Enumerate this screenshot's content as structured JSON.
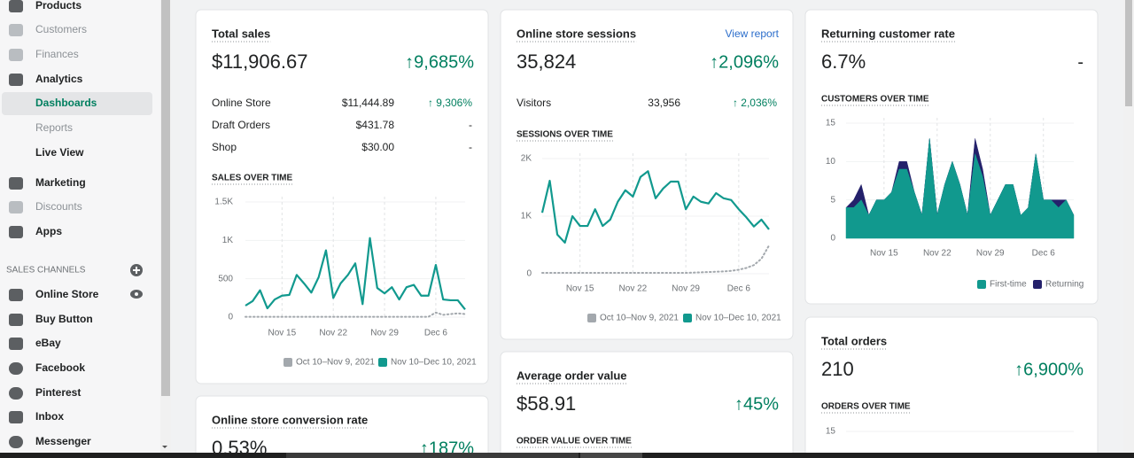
{
  "sidebar": {
    "items": [
      {
        "label": "Products"
      },
      {
        "label": "Customers",
        "disabled": true
      },
      {
        "label": "Finances",
        "disabled": true
      },
      {
        "label": "Analytics"
      },
      {
        "label": "Dashboards",
        "selected": true
      },
      {
        "label": "Reports",
        "disabled": true
      },
      {
        "label": "Live View"
      },
      {
        "label": "Marketing"
      },
      {
        "label": "Discounts",
        "disabled": true
      },
      {
        "label": "Apps"
      }
    ],
    "section": "SALES CHANNELS",
    "channels": [
      "Online Store",
      "Buy Button",
      "eBay",
      "Facebook",
      "Pinterest",
      "Inbox",
      "Messenger"
    ]
  },
  "cards": [
    {
      "title": "Total sales",
      "value": "$11,906.67",
      "change": "↑9,685%",
      "rows": [
        [
          "Online Store",
          "$11,444.89",
          "↑ 9,306%"
        ],
        [
          "Draft Orders",
          "$431.78",
          "-"
        ],
        [
          "Shop",
          "$30.00",
          "-"
        ]
      ],
      "chart": {
        "type": "line",
        "title": "SALES OVER TIME",
        "grid": true,
        "categories": [
          null,
          null,
          null,
          null,
          null,
          "Nov 15",
          null,
          null,
          null,
          null,
          null,
          null,
          "Nov 22",
          null,
          null,
          null,
          null,
          null,
          null,
          "Nov 29",
          null,
          null,
          null,
          null,
          null,
          null,
          "Dec 6",
          null,
          null,
          null,
          null
        ],
        "ylim": [
          0,
          1500
        ],
        "yticks": [
          {
            "value": 1500,
            "label": "1.5K"
          },
          {
            "value": 1000,
            "label": "1K"
          },
          500,
          0
        ],
        "series": [
          {
            "name": "Oct 10–Nov 9, 2021",
            "color": "#a3a8ad",
            "style": "dotted",
            "values": [
              5,
              5,
              5,
              5,
              5,
              5,
              5,
              5,
              5,
              5,
              5,
              5,
              5,
              5,
              5,
              5,
              5,
              5,
              5,
              5,
              5,
              5,
              5,
              5,
              5,
              5,
              60,
              30,
              40,
              50,
              40
            ]
          },
          {
            "name": "Nov 10–Dec 10, 2021",
            "color": "#11998e",
            "values": [
              150,
              210,
              350,
              115,
              230,
              280,
              290,
              550,
              440,
              320,
              520,
              870,
              250,
              440,
              550,
              700,
              170,
              1030,
              380,
              310,
              390,
              230,
              390,
              420,
              280,
              280,
              680,
              230,
              220,
              220,
              100
            ]
          }
        ]
      }
    },
    {
      "title": "Online store sessions",
      "link": "View report",
      "value": "35,824",
      "change": "↑2,096%",
      "rows": [
        [
          "Visitors",
          "33,956",
          "↑ 2,036%"
        ]
      ],
      "chart": {
        "type": "line",
        "title": "SESSIONS OVER TIME",
        "grid": true,
        "categories": [
          null,
          null,
          null,
          null,
          null,
          "Nov 15",
          null,
          null,
          null,
          null,
          null,
          null,
          "Nov 22",
          null,
          null,
          null,
          null,
          null,
          null,
          "Nov 29",
          null,
          null,
          null,
          null,
          null,
          null,
          "Dec 6",
          null,
          null,
          null,
          null
        ],
        "ylim": [
          0,
          2000
        ],
        "yticks": [
          {
            "value": 2000,
            "label": "2K"
          },
          {
            "value": 1000,
            "label": "1K"
          },
          0
        ],
        "series": [
          {
            "name": "Oct 10–Nov 9, 2021",
            "color": "#a3a8ad",
            "style": "dotted",
            "values": [
              15,
              15,
              15,
              15,
              15,
              15,
              15,
              15,
              15,
              15,
              15,
              15,
              15,
              15,
              15,
              15,
              15,
              15,
              15,
              15,
              20,
              25,
              30,
              35,
              40,
              50,
              70,
              100,
              150,
              260,
              490
            ]
          },
          {
            "name": "Nov 10–Dec 10, 2021",
            "color": "#11998e",
            "values": [
              1060,
              1615,
              680,
              540,
              1000,
              830,
              830,
              1120,
              830,
              940,
              1250,
              1450,
              1340,
              1680,
              1780,
              1310,
              1480,
              1600,
              1600,
              1120,
              1340,
              1250,
              1220,
              1400,
              1310,
              1280,
              1120,
              980,
              820,
              940,
              770
            ]
          }
        ]
      }
    },
    {
      "title": "Returning customer rate",
      "value": "6.7%",
      "change": "-",
      "chart": {
        "type": "area",
        "stacked": true,
        "title": "CUSTOMERS OVER TIME",
        "grid": true,
        "categories": [
          null,
          null,
          null,
          null,
          null,
          "Nov 15",
          null,
          null,
          null,
          null,
          null,
          null,
          "Nov 22",
          null,
          null,
          null,
          null,
          null,
          null,
          "Nov 29",
          null,
          null,
          null,
          null,
          null,
          null,
          "Dec 6",
          null,
          null,
          null,
          null
        ],
        "ylim": [
          0,
          15
        ],
        "yticks": [
          15,
          10,
          5,
          0
        ],
        "series": [
          {
            "name": "First-time",
            "color": "#11998e",
            "values": [
              4,
              4,
              5,
              3,
              5,
              5,
              6,
              9,
              9,
              6,
              3,
              13,
              3,
              7,
              10,
              7,
              3,
              11,
              8,
              3,
              5,
              7,
              7,
              3,
              4,
              11,
              5,
              5,
              4,
              5,
              3
            ]
          },
          {
            "name": "Returning",
            "color": "#24216b",
            "values": [
              0,
              1,
              2,
              0,
              0,
              0,
              0,
              1,
              1,
              0,
              0,
              0,
              0,
              0,
              0,
              0,
              0,
              2,
              1,
              0,
              0,
              0,
              0,
              0,
              0,
              0,
              0,
              0,
              1,
              0,
              0
            ]
          }
        ]
      }
    },
    {
      "title": "Total orders",
      "value": "210",
      "change": "↑6,900%",
      "chart": {
        "type": "line",
        "title": "ORDERS OVER TIME",
        "grid": true,
        "ylim": [
          0,
          15
        ],
        "yticks": [
          15
        ]
      }
    },
    {
      "title": "Average order value",
      "value": "$58.91",
      "change": "↑45%",
      "chart": {
        "type": "line",
        "title": "ORDER VALUE OVER TIME"
      }
    },
    {
      "title": "Online store conversion rate",
      "value": "0.53%",
      "change": "↑187%"
    }
  ]
}
